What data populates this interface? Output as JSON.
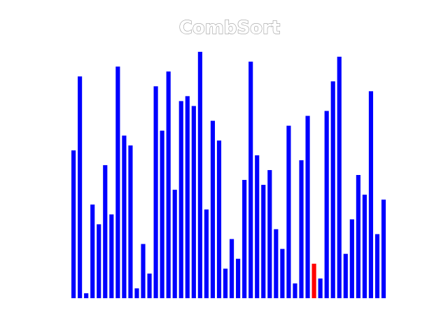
{
  "chart_data": {
    "type": "bar",
    "title": "CombSort",
    "xlabel": "",
    "ylabel": "",
    "ylim": [
      0,
      100
    ],
    "grid": false,
    "bar_color": "#0000ff",
    "highlight_color": "#ff0000",
    "highlight_index": 38,
    "values": [
      60,
      90,
      2,
      38,
      30,
      54,
      34,
      94,
      66,
      62,
      4,
      22,
      10,
      86,
      68,
      92,
      44,
      80,
      82,
      78,
      100,
      36,
      72,
      64,
      12,
      24,
      16,
      48,
      96,
      58,
      46,
      52,
      28,
      20,
      70,
      6,
      56,
      74,
      14,
      8,
      76,
      88,
      98,
      18,
      32,
      50,
      42,
      84,
      26,
      40
    ]
  }
}
